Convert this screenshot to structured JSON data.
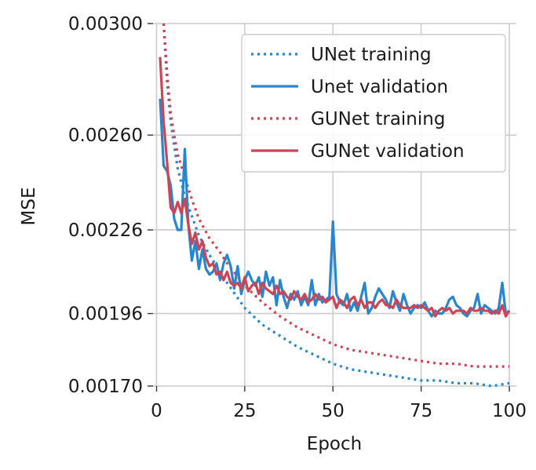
{
  "chart_data": {
    "type": "line",
    "title": "",
    "xlabel": "Epoch",
    "ylabel": "MSE",
    "xlim": [
      -1,
      102
    ],
    "ylim": [
      0.0017,
      0.003
    ],
    "grid": true,
    "xticks": [
      0,
      25,
      50,
      75,
      100
    ],
    "xtick_labels": [
      "0",
      "25",
      "50",
      "75",
      "100"
    ],
    "yticks": [
      0.0017,
      0.00196,
      0.00226,
      0.0026,
      0.003
    ],
    "ytick_labels": [
      "0.00170",
      "0.00196",
      "0.00226",
      "0.00260",
      "0.00300"
    ],
    "legend_position": "top-right",
    "series": [
      {
        "name": "UNet training",
        "color": "#2986cc",
        "style": "dotted",
        "x": [
          1,
          2,
          3,
          4,
          5,
          6,
          8,
          10,
          12,
          15,
          18,
          20,
          25,
          30,
          35,
          40,
          45,
          50,
          55,
          60,
          65,
          70,
          75,
          80,
          85,
          90,
          95,
          100
        ],
        "values": [
          0.00345,
          0.003,
          0.00279,
          0.00265,
          0.00256,
          0.00248,
          0.00238,
          0.00231,
          0.00224,
          0.00217,
          0.00211,
          0.00207,
          0.00198,
          0.00192,
          0.00188,
          0.00184,
          0.00181,
          0.00178,
          0.00176,
          0.00175,
          0.00174,
          0.00173,
          0.00172,
          0.00172,
          0.00171,
          0.00171,
          0.0017,
          0.00171
        ]
      },
      {
        "name": "Unet validation",
        "color": "#2986cc",
        "style": "solid",
        "x": [
          1,
          2,
          3,
          4,
          5,
          6,
          7,
          8,
          9,
          10,
          11,
          12,
          13,
          14,
          15,
          16,
          17,
          18,
          19,
          20,
          21,
          22,
          23,
          24,
          25,
          26,
          27,
          28,
          29,
          30,
          31,
          32,
          33,
          34,
          35,
          36,
          37,
          38,
          39,
          40,
          41,
          42,
          43,
          44,
          45,
          46,
          47,
          48,
          49,
          50,
          51,
          52,
          53,
          54,
          55,
          56,
          57,
          58,
          59,
          60,
          61,
          62,
          63,
          64,
          65,
          66,
          67,
          68,
          69,
          70,
          71,
          72,
          73,
          74,
          75,
          76,
          77,
          78,
          79,
          80,
          81,
          82,
          83,
          84,
          85,
          86,
          87,
          88,
          89,
          90,
          91,
          92,
          93,
          94,
          95,
          96,
          97,
          98,
          99,
          100
        ],
        "values": [
          0.00273,
          0.00249,
          0.00247,
          0.00242,
          0.0023,
          0.00226,
          0.00226,
          0.00255,
          0.00228,
          0.00215,
          0.00222,
          0.00212,
          0.00219,
          0.00212,
          0.0021,
          0.00211,
          0.00214,
          0.00208,
          0.00214,
          0.00217,
          0.00213,
          0.00205,
          0.00213,
          0.00203,
          0.00208,
          0.00211,
          0.00208,
          0.00206,
          0.00209,
          0.00202,
          0.00211,
          0.00206,
          0.00209,
          0.00199,
          0.00208,
          0.00202,
          0.00198,
          0.00203,
          0.00201,
          0.00204,
          0.00199,
          0.00202,
          0.00199,
          0.00208,
          0.00199,
          0.00203,
          0.002,
          0.00201,
          0.00202,
          0.00229,
          0.00203,
          0.002,
          0.00199,
          0.00203,
          0.00197,
          0.002,
          0.00197,
          0.00202,
          0.00207,
          0.00196,
          0.00198,
          0.00202,
          0.00205,
          0.00203,
          0.00201,
          0.00198,
          0.00204,
          0.002,
          0.00197,
          0.00203,
          0.00199,
          0.00196,
          0.00198,
          0.00199,
          0.00198,
          0.002,
          0.00197,
          0.00195,
          0.00197,
          0.00196,
          0.00196,
          0.00198,
          0.00201,
          0.00202,
          0.00199,
          0.00198,
          0.00196,
          0.00195,
          0.00197,
          0.00198,
          0.00203,
          0.00196,
          0.00199,
          0.00198,
          0.00197,
          0.00196,
          0.00198,
          0.00207,
          0.00196,
          0.00197
        ]
      },
      {
        "name": "GUNet training",
        "color": "#cc4455",
        "style": "dotted",
        "x": [
          1,
          2,
          3,
          4,
          5,
          6,
          8,
          10,
          12,
          15,
          18,
          20,
          25,
          30,
          35,
          40,
          45,
          50,
          55,
          60,
          65,
          70,
          75,
          80,
          85,
          90,
          95,
          100
        ],
        "values": [
          0.00345,
          0.003,
          0.00282,
          0.00268,
          0.0026,
          0.00253,
          0.00245,
          0.00237,
          0.0023,
          0.00223,
          0.00218,
          0.00214,
          0.00206,
          0.002,
          0.00195,
          0.00191,
          0.00188,
          0.00185,
          0.00183,
          0.00182,
          0.00181,
          0.0018,
          0.00179,
          0.00178,
          0.00178,
          0.00177,
          0.00177,
          0.00177
        ]
      },
      {
        "name": "GUNet validation",
        "color": "#cc4455",
        "style": "solid",
        "x": [
          1,
          2,
          3,
          4,
          5,
          6,
          7,
          8,
          9,
          10,
          11,
          12,
          13,
          14,
          15,
          16,
          17,
          18,
          19,
          20,
          21,
          22,
          23,
          24,
          25,
          26,
          27,
          28,
          29,
          30,
          31,
          32,
          33,
          34,
          35,
          36,
          37,
          38,
          39,
          40,
          41,
          42,
          43,
          44,
          45,
          46,
          47,
          48,
          49,
          50,
          51,
          52,
          53,
          54,
          55,
          56,
          57,
          58,
          59,
          60,
          61,
          62,
          63,
          64,
          65,
          66,
          67,
          68,
          69,
          70,
          71,
          72,
          73,
          74,
          75,
          76,
          77,
          78,
          79,
          80,
          81,
          82,
          83,
          84,
          85,
          86,
          87,
          88,
          89,
          90,
          91,
          92,
          93,
          94,
          95,
          96,
          97,
          98,
          99,
          100
        ],
        "values": [
          0.00288,
          0.00265,
          0.0025,
          0.00234,
          0.00232,
          0.00236,
          0.00232,
          0.00237,
          0.00228,
          0.00221,
          0.00225,
          0.00219,
          0.00222,
          0.00216,
          0.00213,
          0.00214,
          0.0021,
          0.00211,
          0.00208,
          0.00211,
          0.00207,
          0.00206,
          0.00207,
          0.00205,
          0.00209,
          0.00204,
          0.00206,
          0.00207,
          0.00203,
          0.00207,
          0.00205,
          0.00204,
          0.00203,
          0.00206,
          0.00203,
          0.00204,
          0.00202,
          0.00201,
          0.00204,
          0.00202,
          0.00201,
          0.00203,
          0.002,
          0.00201,
          0.00203,
          0.00201,
          0.00202,
          0.002,
          0.00201,
          0.00202,
          0.00198,
          0.00201,
          0.002,
          0.00198,
          0.00201,
          0.00202,
          0.00199,
          0.00201,
          0.00198,
          0.002,
          0.002,
          0.00198,
          0.002,
          0.00201,
          0.00199,
          0.00199,
          0.00198,
          0.00201,
          0.00199,
          0.00198,
          0.00198,
          0.00198,
          0.00199,
          0.00198,
          0.00199,
          0.00198,
          0.00197,
          0.00198,
          0.00195,
          0.00197,
          0.00198,
          0.00197,
          0.00198,
          0.00196,
          0.00197,
          0.00197,
          0.00197,
          0.00196,
          0.00198,
          0.00197,
          0.00197,
          0.00198,
          0.00197,
          0.00197,
          0.00196,
          0.00197,
          0.00196,
          0.00199,
          0.00195,
          0.00197
        ]
      }
    ]
  }
}
